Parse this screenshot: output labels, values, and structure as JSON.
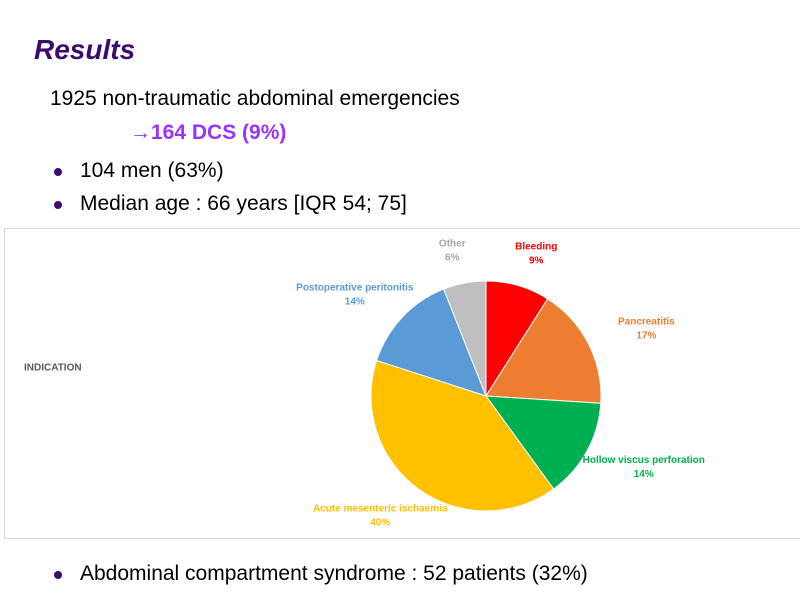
{
  "title": "Results",
  "intro": "1925 non-traumatic abdominal emergencies",
  "highlight": "→164 DCS (9%)",
  "bullets": [
    "104 men (63%)",
    "Median age : 66 years [IQR 54; 75]"
  ],
  "footer_bullet": "Abdominal compartment syndrome : 52 patients (32%)",
  "chart_data": {
    "type": "pie",
    "title": "INDICATION",
    "categories": [
      "Bleeding",
      "Pancreatitis",
      "Hollow viscus perforation",
      "Acute mesenteric ischaemia",
      "Postoperative peritonitis",
      "Other"
    ],
    "values": [
      9,
      17,
      14,
      40,
      14,
      6
    ],
    "value_labels": [
      "9%",
      "17%",
      "14%",
      "40%",
      "14%",
      "6%"
    ],
    "colors": [
      "#ff0000",
      "#ed7d31",
      "#00b050",
      "#ffc000",
      "#5b9bd5",
      "#bfbfbf"
    ],
    "label_colors": [
      "#ff0000",
      "#ed7d31",
      "#00b050",
      "#ffc000",
      "#5b9bd5",
      "#a5a5a5"
    ]
  }
}
